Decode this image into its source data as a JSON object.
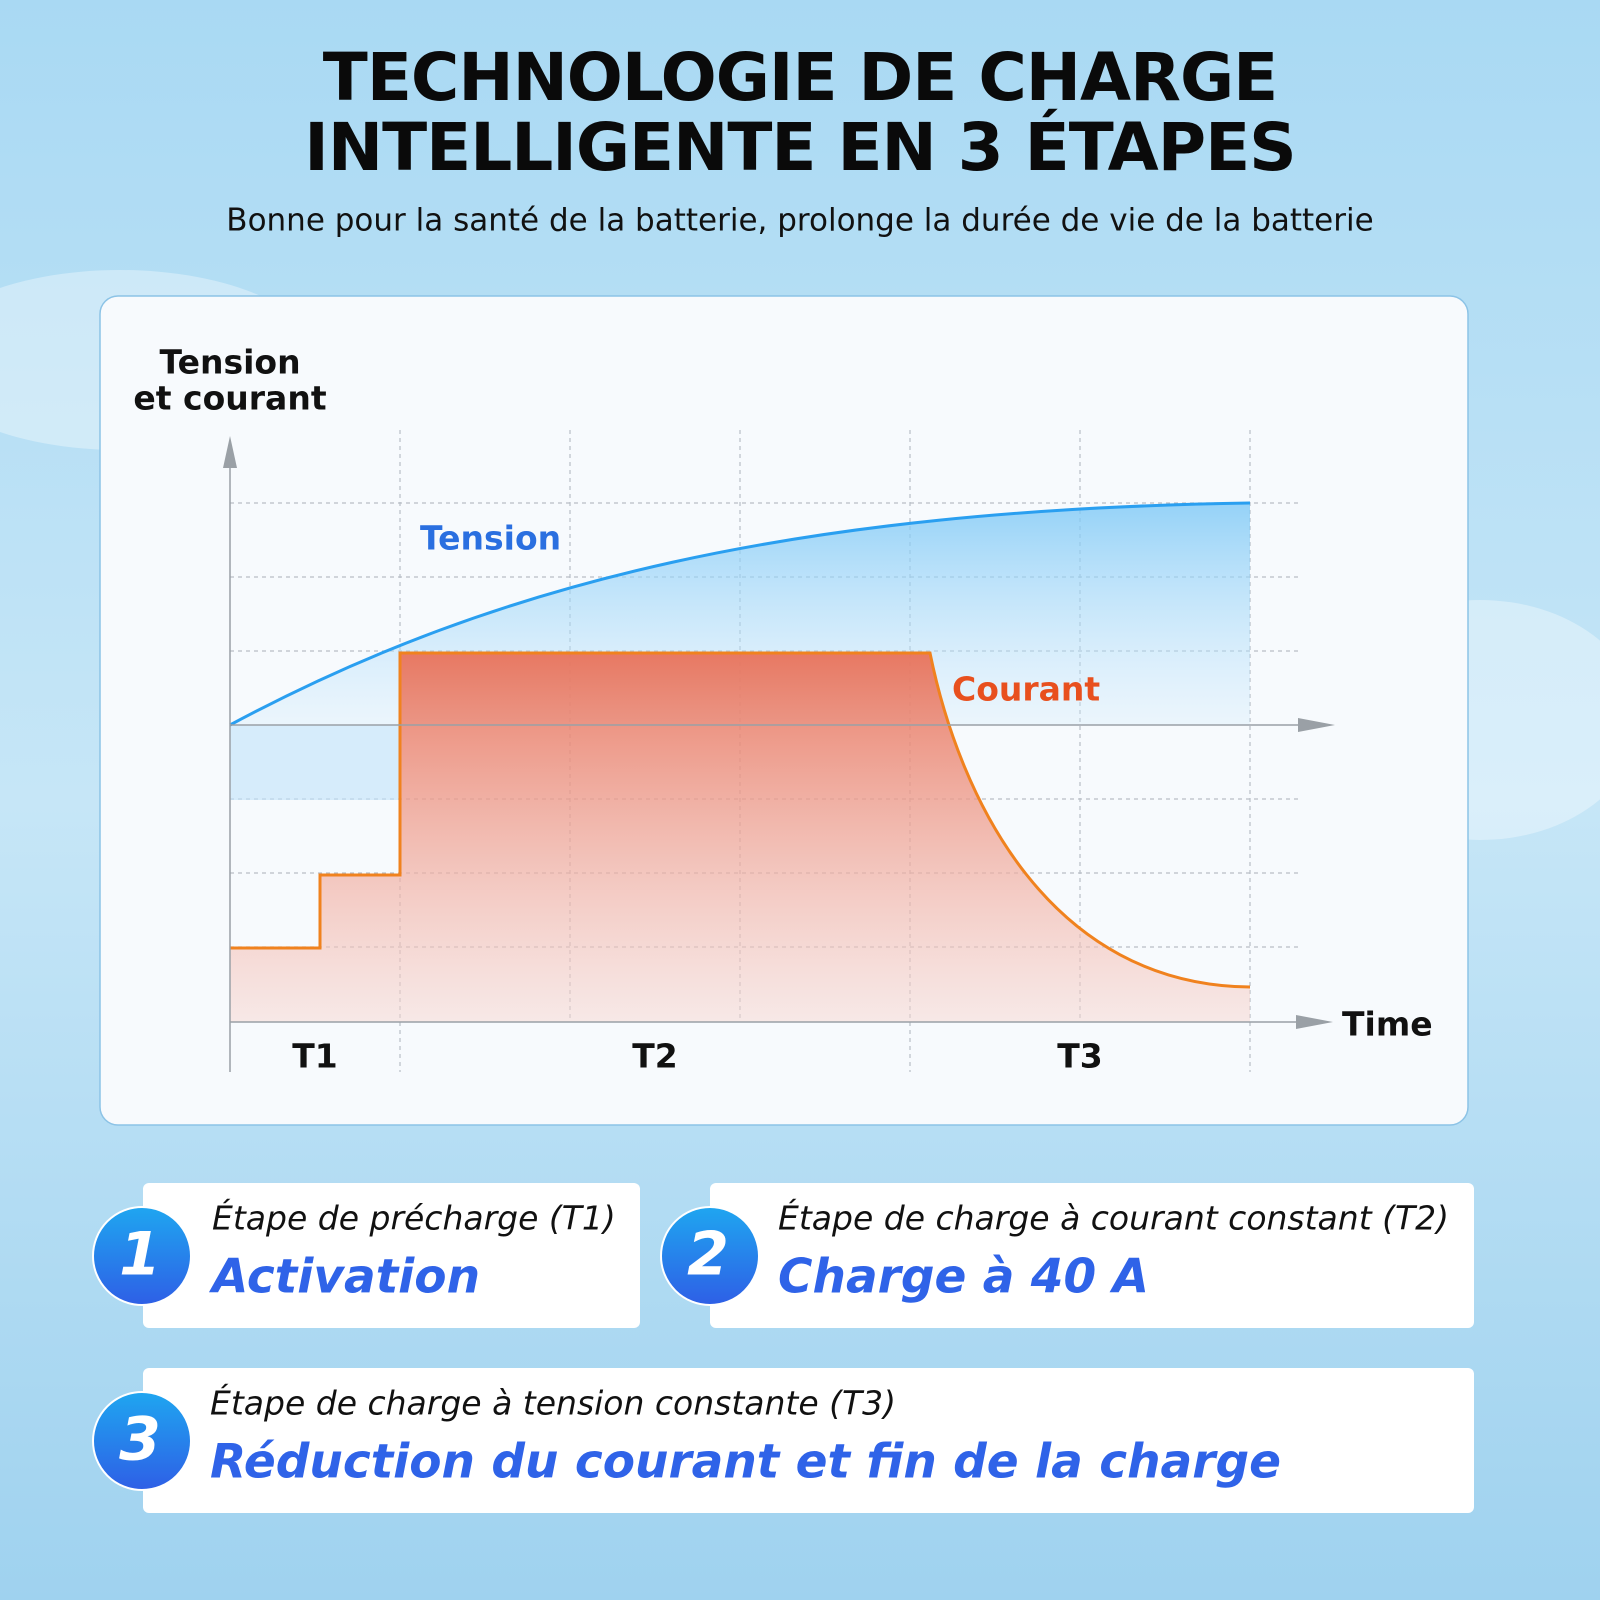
{
  "header": {
    "title_lines": [
      "TECHNOLOGIE DE CHARGE",
      "INTELLIGENTE EN 3 ÉTAPES"
    ],
    "subtitle": "Bonne pour la santé de la batterie, prolonge la durée de vie de la batterie"
  },
  "diagram": {
    "y_label_lines": [
      "Tension",
      "et courant"
    ],
    "tension_label": "Tension",
    "courant_label": "Courant",
    "x_label": "Time",
    "stages": [
      "T1",
      "T2",
      "T3"
    ]
  },
  "steps": [
    {
      "number": "1",
      "heading": "Étape de précharge (T1)",
      "text": "Activation"
    },
    {
      "number": "2",
      "heading": "Étape de charge à courant constant (T2)",
      "text": "Charge à 40 A"
    },
    {
      "number": "3",
      "heading": "Étape de charge à tension constante (T3)",
      "text": "Réduction du courant et fin de la charge"
    }
  ]
}
